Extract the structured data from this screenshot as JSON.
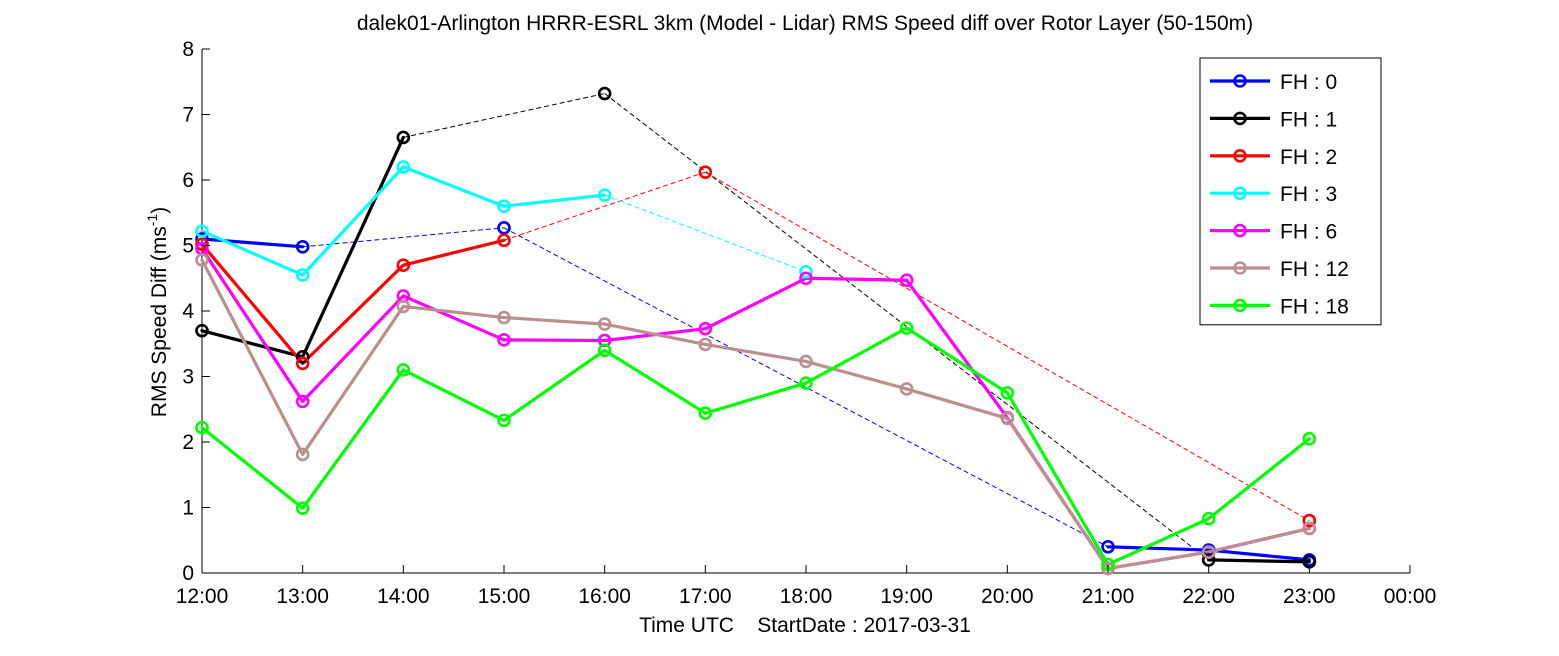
{
  "chart_data": {
    "type": "line",
    "title": "dalek01-Arlington HRRR-ESRL 3km (Model - Lidar) RMS Speed diff over Rotor Layer (50-150m)",
    "xlabel": "Time UTC    StartDate : 2017-03-31",
    "ylabel_main": "RMS Speed Diff (ms",
    "ylabel_sup": "-1",
    "ylabel_end": ")",
    "xlim": [
      12,
      24
    ],
    "ylim": [
      0,
      8
    ],
    "x_ticks": [
      12,
      13,
      14,
      15,
      16,
      17,
      18,
      19,
      20,
      21,
      22,
      23,
      24
    ],
    "x_tick_labels": [
      "12:00",
      "13:00",
      "14:00",
      "15:00",
      "16:00",
      "17:00",
      "18:00",
      "19:00",
      "20:00",
      "21:00",
      "22:00",
      "23:00",
      "00:00"
    ],
    "y_ticks": [
      0,
      1,
      2,
      3,
      4,
      5,
      6,
      7,
      8
    ],
    "y_tick_labels": [
      "0",
      "1",
      "2",
      "3",
      "4",
      "5",
      "6",
      "7",
      "8"
    ],
    "grid": false,
    "legend_position": "top-right",
    "series": [
      {
        "name": "FH : 0",
        "color": "#0000ff",
        "points": [
          [
            12,
            5.1
          ],
          [
            13,
            4.98
          ],
          [
            15,
            5.27
          ],
          [
            21,
            0.4
          ],
          [
            22,
            0.35
          ],
          [
            23,
            0.2
          ]
        ]
      },
      {
        "name": "FH : 1",
        "color": "#000000",
        "points": [
          [
            12,
            3.7
          ],
          [
            13,
            3.3
          ],
          [
            14,
            6.65
          ],
          [
            16,
            7.32
          ],
          [
            22,
            0.2
          ],
          [
            23,
            0.17
          ]
        ]
      },
      {
        "name": "FH : 2",
        "color": "#ff0000",
        "points": [
          [
            12,
            5.02
          ],
          [
            13,
            3.2
          ],
          [
            14,
            4.7
          ],
          [
            15,
            5.08
          ],
          [
            17,
            6.12
          ],
          [
            23,
            0.8
          ]
        ]
      },
      {
        "name": "FH : 3",
        "color": "#00ffff",
        "points": [
          [
            12,
            5.22
          ],
          [
            13,
            4.55
          ],
          [
            14,
            6.2
          ],
          [
            15,
            5.6
          ],
          [
            16,
            5.77
          ],
          [
            18,
            4.6
          ]
        ]
      },
      {
        "name": "FH : 6",
        "color": "#ff00ff",
        "points": [
          [
            12,
            4.95
          ],
          [
            13,
            2.62
          ],
          [
            14,
            4.23
          ],
          [
            15,
            3.56
          ],
          [
            16,
            3.55
          ],
          [
            17,
            3.73
          ],
          [
            18,
            4.5
          ],
          [
            19,
            4.47
          ],
          [
            20,
            2.37
          ],
          [
            21,
            0.07
          ],
          [
            22,
            0.32
          ],
          [
            23,
            0.68
          ]
        ]
      },
      {
        "name": "FH : 12",
        "color": "#bc8f8f",
        "points": [
          [
            12,
            4.78
          ],
          [
            13,
            1.81
          ],
          [
            14,
            4.07
          ],
          [
            15,
            3.9
          ],
          [
            16,
            3.8
          ],
          [
            17,
            3.49
          ],
          [
            18,
            3.23
          ],
          [
            19,
            2.81
          ],
          [
            20,
            2.36
          ],
          [
            21,
            0.07
          ],
          [
            22,
            0.32
          ],
          [
            23,
            0.68
          ]
        ]
      },
      {
        "name": "FH : 18",
        "color": "#00ff00",
        "points": [
          [
            12,
            2.22
          ],
          [
            13,
            0.99
          ],
          [
            14,
            3.1
          ],
          [
            15,
            2.33
          ],
          [
            16,
            3.4
          ],
          [
            17,
            2.44
          ],
          [
            18,
            2.9
          ],
          [
            19,
            3.74
          ],
          [
            20,
            2.75
          ],
          [
            21,
            0.13
          ],
          [
            22,
            0.83
          ],
          [
            23,
            2.05
          ]
        ]
      }
    ]
  }
}
